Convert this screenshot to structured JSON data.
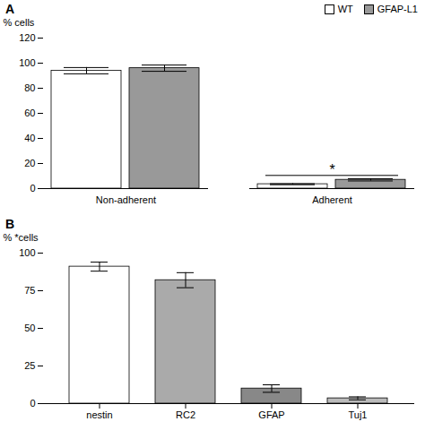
{
  "chart_data": [
    {
      "type": "bar",
      "title": "A",
      "categories": [
        "Non-adherent",
        "Adherent"
      ],
      "series": [
        {
          "name": "WT",
          "color": "#FFFFFF",
          "values": [
            94,
            3.5
          ],
          "errors": [
            2.5,
            0.4
          ]
        },
        {
          "name": "GFAP-L1",
          "color": "#999999",
          "values": [
            96,
            7.0
          ],
          "errors": [
            2.5,
            0.9
          ]
        }
      ],
      "ylabel": "% cells",
      "ylim": [
        0,
        120
      ],
      "yticks": [
        0,
        20,
        40,
        60,
        80,
        100,
        120
      ],
      "legend": "upper right",
      "annotations": [
        {
          "text": "*",
          "x": "Adherent",
          "y": 10.5
        }
      ]
    },
    {
      "type": "bar",
      "title": "B",
      "categories": [
        "nestin",
        "RC2",
        "GFAP",
        "Tuj1"
      ],
      "values": [
        91,
        82,
        10,
        3.5
      ],
      "errors": [
        3,
        5,
        2.5,
        1.0
      ],
      "colors": [
        "#FFFFFF",
        "#AAAAAA",
        "#888888",
        "#BBBBBB"
      ],
      "ylabel": "% *cells",
      "ylim": [
        0,
        100
      ],
      "yticks": [
        0,
        25,
        50,
        75,
        100
      ]
    }
  ]
}
